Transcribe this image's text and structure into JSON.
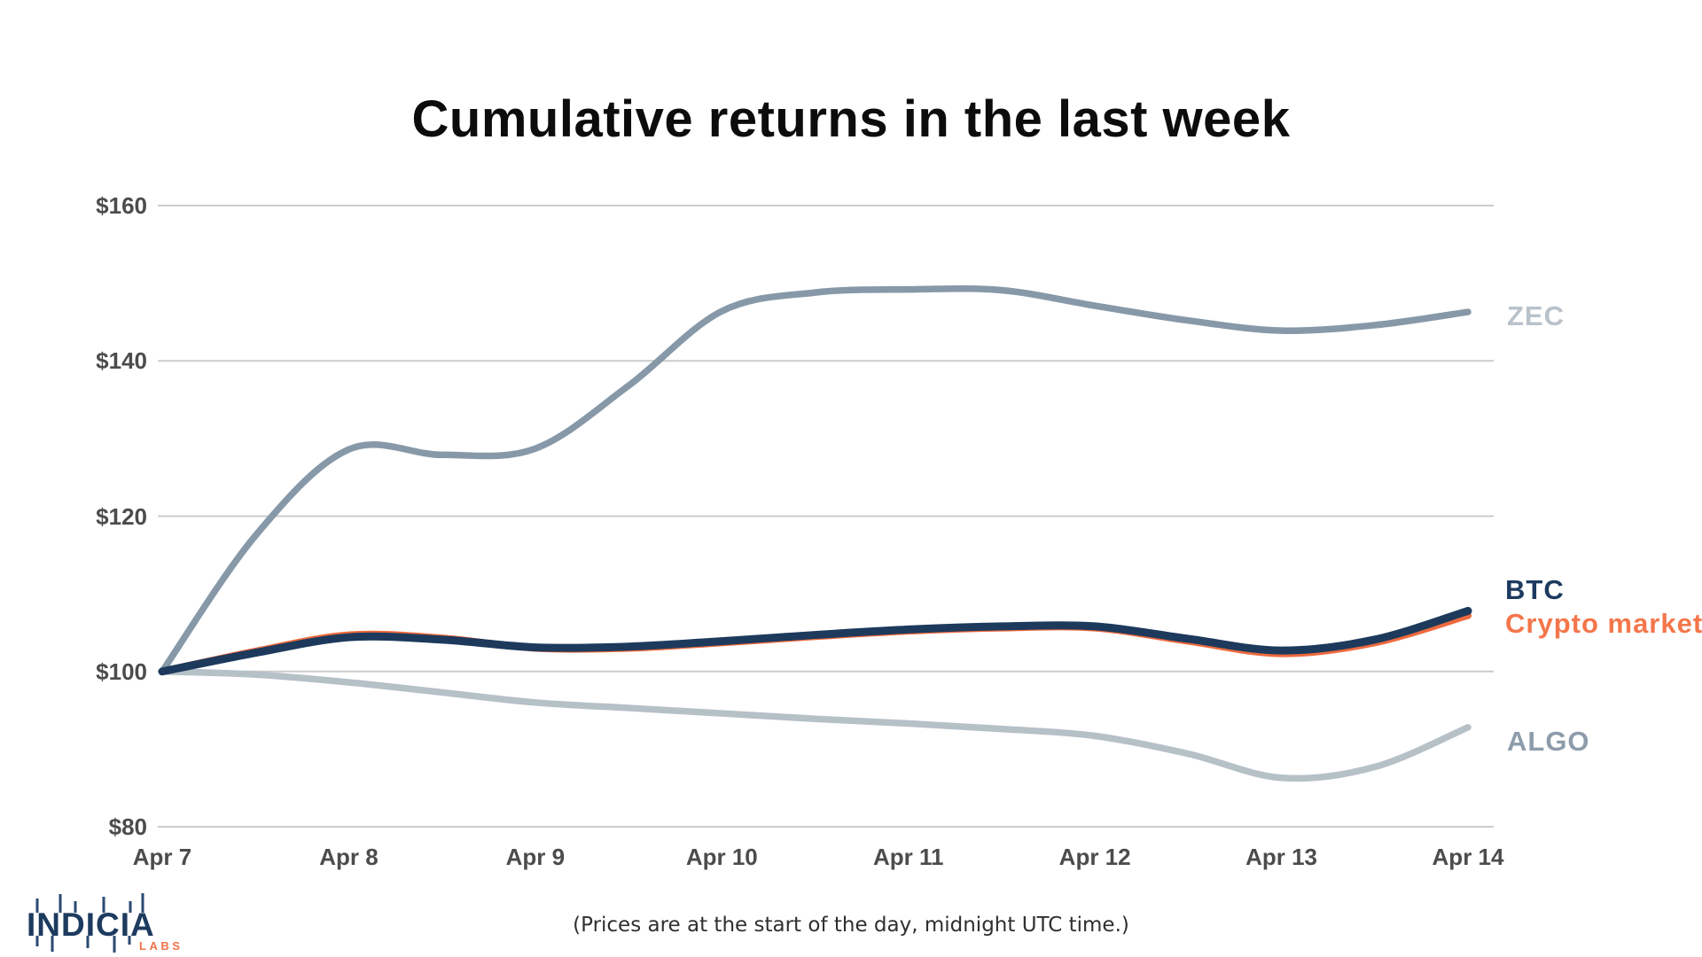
{
  "page": {
    "title": "Cumulative returns in the last week",
    "footnote": "(Prices are at the start of the day, midnight UTC time.)"
  },
  "logo": {
    "name": "INDICIA",
    "sub": "LABS",
    "name_color": "#1d3a5f",
    "sub_color": "#f0734a"
  },
  "chart_data": {
    "type": "line",
    "title": "Cumulative returns in the last week",
    "note": "(Prices are at the start of the day, midnight UTC time.)",
    "x_tick_labels": [
      "Apr 7",
      "Apr 8",
      "Apr 9",
      "Apr 10",
      "Apr 11",
      "Apr 12",
      "Apr 13",
      "Apr 14"
    ],
    "y_ticks": [
      80,
      100,
      120,
      140,
      160
    ],
    "y_tick_labels": [
      "$80",
      "$100",
      "$120",
      "$140",
      "$160"
    ],
    "ylim": [
      80,
      160
    ],
    "grid": "horizontal-only",
    "legend_position": "labels-at-line-ends-right",
    "x_unit": "days since Apr 7 (half-day resolution)",
    "x": [
      0,
      0.5,
      1,
      1.5,
      2,
      2.5,
      3,
      3.5,
      4,
      4.5,
      5,
      5.5,
      6,
      6.5,
      7
    ],
    "series": [
      {
        "name": "ZEC",
        "color": "#8799a8",
        "label_color": "#b9c2ca",
        "values": [
          100,
          117.5,
          128.6,
          127.9,
          128.7,
          136.8,
          146.4,
          148.8,
          149.2,
          149.1,
          147.1,
          145.2,
          143.9,
          144.6,
          146.3
        ]
      },
      {
        "name": "ALGO",
        "color": "#b6c0c7",
        "label_color": "#8d9cab",
        "values": [
          100,
          99.6,
          98.6,
          97.3,
          96.0,
          95.3,
          94.6,
          93.9,
          93.3,
          92.6,
          91.7,
          89.4,
          86.3,
          87.7,
          92.8
        ]
      },
      {
        "name": "Crypto market",
        "color": "#ee6a3e",
        "label_color": "#f4764a",
        "values": [
          100,
          102.6,
          104.7,
          104.3,
          103.0,
          103.0,
          103.7,
          104.5,
          105.2,
          105.6,
          105.6,
          103.9,
          102.3,
          103.7,
          107.2
        ]
      },
      {
        "name": "BTC",
        "color": "#1d3a5c",
        "label_color": "#1d3a5f",
        "values": [
          100,
          102.4,
          104.4,
          104.1,
          103.1,
          103.2,
          103.9,
          104.7,
          105.4,
          105.8,
          105.8,
          104.2,
          102.7,
          104.1,
          107.8
        ]
      }
    ]
  }
}
